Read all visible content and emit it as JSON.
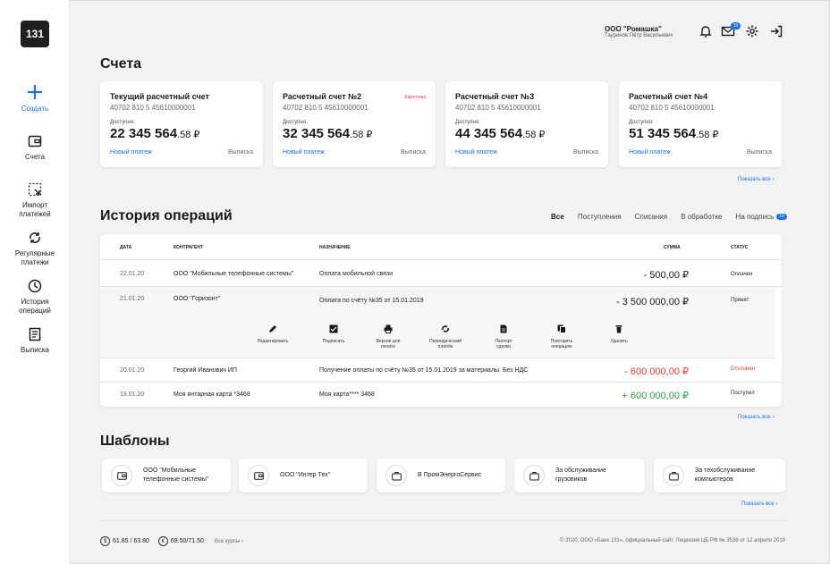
{
  "app": {
    "logo": "131"
  },
  "sidebar": {
    "items": [
      {
        "label": "Создать",
        "icon": "plus-icon"
      },
      {
        "label": "Счета",
        "icon": "wallet-icon"
      },
      {
        "label": "Импорт платежей",
        "icon": "import-icon"
      },
      {
        "label": "Регулярные платежи",
        "icon": "repeat-icon"
      },
      {
        "label": "История операций",
        "icon": "clock-icon"
      },
      {
        "label": "Выписка",
        "icon": "document-icon"
      }
    ]
  },
  "header": {
    "company": "ООО \"Ромашка\"",
    "user": "Тауринов Пётр Васильевич",
    "mail_badge": "10",
    "icons": [
      "bell-icon",
      "mail-icon",
      "gear-icon",
      "logout-icon"
    ]
  },
  "accounts": {
    "heading": "Счета",
    "show_all": "Показать все",
    "available_label": "Доступно:",
    "new_payment": "Новый платеж",
    "statement": "Выписка",
    "cards": [
      {
        "title": "Текущий расчетный счет",
        "number": "40702 810 5 45610000001",
        "balance": "22 345 564",
        "kop": ".58 ₽",
        "tag": ""
      },
      {
        "title": "Расчетный счет №2",
        "number": "40702 810 5 45610000001",
        "balance": "32 345 564",
        "kop": ".58 ₽",
        "tag": "Картотека"
      },
      {
        "title": "Расчетный счет №3",
        "number": "40702 810 5 45610000001",
        "balance": "44 345 564",
        "kop": ".58 ₽",
        "tag": ""
      },
      {
        "title": "Расчетный счет №4",
        "number": "40702 810 5 45610000001",
        "balance": "51 345 564",
        "kop": ".58 ₽",
        "tag": ""
      }
    ]
  },
  "history": {
    "heading": "История операций",
    "show_all": "Показать все",
    "filters": [
      "Все",
      "Поступления",
      "Списания",
      "В обработке",
      "На подпись"
    ],
    "sign_badge": "10",
    "columns": {
      "date": "ДАТА",
      "counterparty": "КОНТРАГЕНТ",
      "purpose": "НАЗНАЧЕНИЕ",
      "sum": "СУММА",
      "status": "СТАТУС"
    },
    "rows": [
      {
        "date": "22.01.20",
        "counterparty": "ООО  \"Мобильные телефонные системы\"",
        "purpose": "Оплата мобильной связи",
        "sum": "- 500,00 ₽",
        "status": "Оплачен"
      },
      {
        "date": "21.01.20",
        "counterparty": "ООО \"Горизонт\"",
        "purpose": "Оплата по счёту №35 от 15.01.2019",
        "sum": "- 3 500 000,00 ₽",
        "status": "Принят"
      },
      {
        "date": "20.01.20",
        "counterparty": "Георгий Иванович ИП",
        "purpose": "Получение оплаты по счёту №35 от 15.01.2019 за материалы. Без НДС",
        "sum": "- 600 000,00 ₽",
        "status": "Отклонен"
      },
      {
        "date": "19.01.20",
        "counterparty": "Моя янтарная карта *3468",
        "purpose": "Моя карта**** 3468",
        "sum": "+ 600 000,00 ₽",
        "status": "Поступил"
      }
    ],
    "actions": [
      {
        "label": "Редактировать",
        "icon": "pencil-icon"
      },
      {
        "label": "Подписать",
        "icon": "sign-icon"
      },
      {
        "label": "Версия для печати",
        "icon": "printer-icon"
      },
      {
        "label": "Периодический платёж",
        "icon": "repeat-icon"
      },
      {
        "label": "Паспорт сделки",
        "icon": "file-icon"
      },
      {
        "label": "Повторить операцию",
        "icon": "copy-icon"
      },
      {
        "label": "Удалить",
        "icon": "trash-icon"
      }
    ],
    "colors": {
      "negative": "#e53935",
      "positive": "#2e9e3e",
      "rejected": "#e53935"
    }
  },
  "templates": {
    "heading": "Шаблоны",
    "show_all": "Показать все",
    "items": [
      {
        "label": "ООО \"Мобильные телефонные системы\"",
        "icon": "wallet-icon"
      },
      {
        "label": "ООО \"Интер Тех\"",
        "icon": "wallet-icon"
      },
      {
        "label": "В ПромЭнергоСервис",
        "icon": "briefcase-icon"
      },
      {
        "label": "За обслуживание грузовиков",
        "icon": "briefcase-icon"
      },
      {
        "label": "За техобслуживание компьютеров",
        "icon": "briefcase-icon"
      }
    ]
  },
  "footer": {
    "usd": "61.85 / 63.80",
    "eur": "69.50/71.50",
    "all_rates": "Все курсы",
    "copyright": "© 2020, ООО «Банк 131», официальный сайт. Лицензия ЦБ РФ № 3538 от 12 апреля 2019"
  }
}
